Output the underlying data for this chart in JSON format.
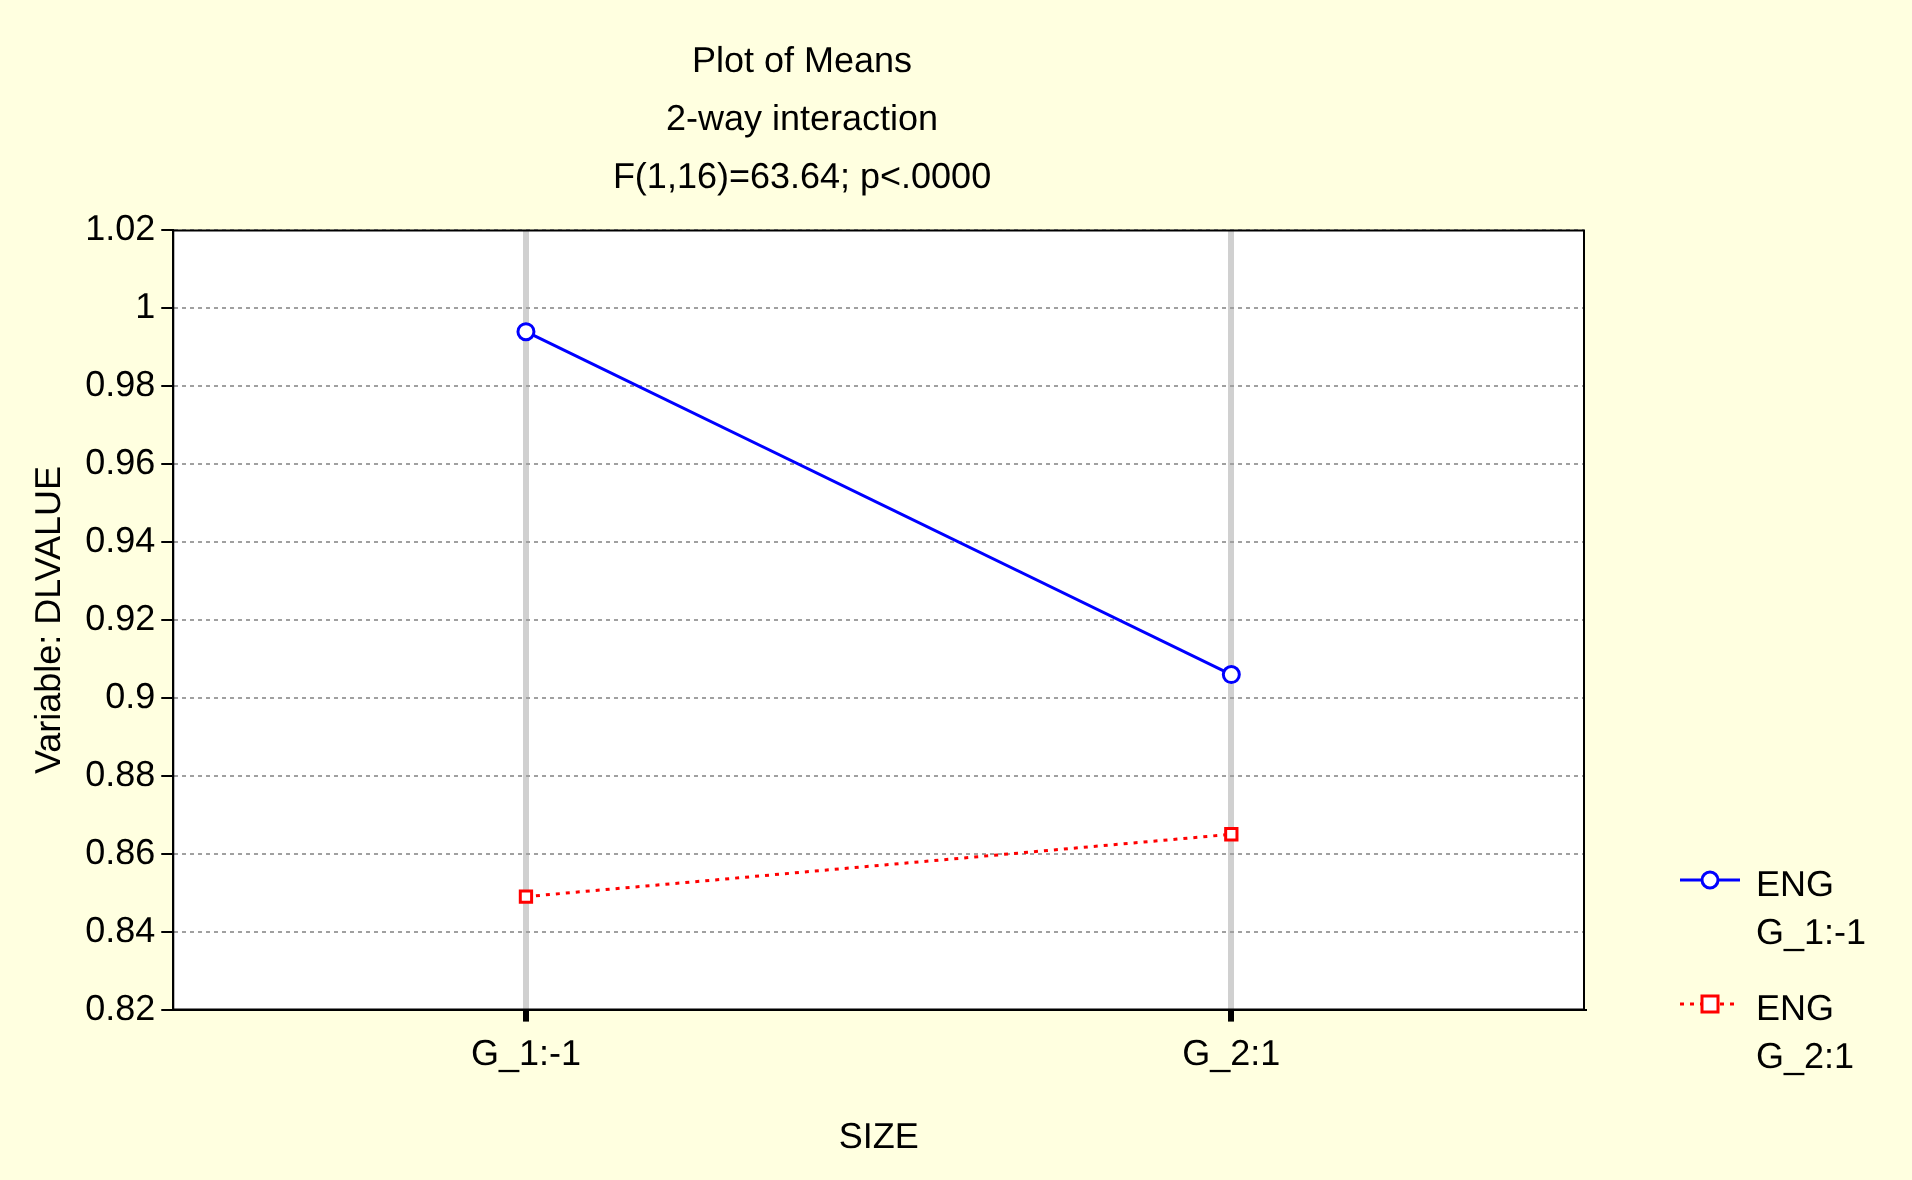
{
  "chart_data": {
    "type": "line",
    "title": "Plot of Means",
    "subtitle": "2-way interaction",
    "annotations": [
      "F(1,16)=63.64; p<.0000"
    ],
    "xlabel": "SIZE",
    "ylabel": "Variable: DLVALUE",
    "categories": [
      "G_1:-1",
      "G_2:1"
    ],
    "series": [
      {
        "name": "ENG G_1:-1",
        "color": "#0000ff",
        "values": [
          0.994,
          0.906
        ],
        "marker": "circle",
        "line_style": "solid"
      },
      {
        "name": "ENG G_2:1",
        "color": "#ff0000",
        "values": [
          0.849,
          0.865
        ],
        "marker": "square",
        "line_style": "dotted"
      }
    ],
    "ylim": [
      0.82,
      1.02
    ],
    "yticks": [
      {
        "value": 0.82,
        "label": "0.82"
      },
      {
        "value": 0.84,
        "label": "0.84"
      },
      {
        "value": 0.86,
        "label": "0.86"
      },
      {
        "value": 0.88,
        "label": "0.88"
      },
      {
        "value": 0.9,
        "label": "0.9"
      },
      {
        "value": 0.92,
        "label": "0.92"
      },
      {
        "value": 0.94,
        "label": "0.94"
      },
      {
        "value": 0.96,
        "label": "0.96"
      },
      {
        "value": 0.98,
        "label": "0.98"
      },
      {
        "value": 1,
        "label": "1"
      },
      {
        "value": 1.02,
        "label": "1.02"
      }
    ],
    "grid": true,
    "legend": "right"
  }
}
